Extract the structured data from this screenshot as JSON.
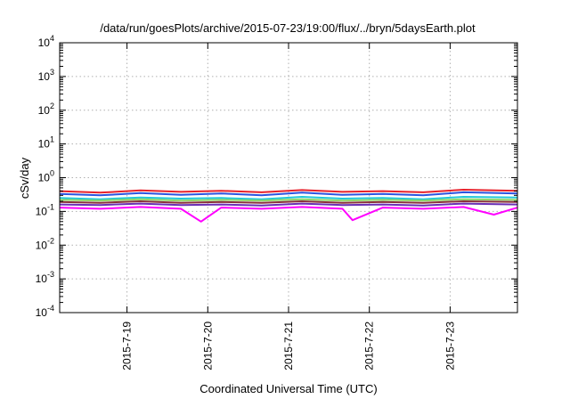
{
  "chart_data": {
    "type": "line",
    "title": "/data/run/goesPlots/archive/2015-07-23/19:00/flux/../bryn/5daysEarth.plot",
    "xlabel": "Coordinated Universal Time (UTC)",
    "ylabel": "cSv/day",
    "yscale": "log",
    "ylim": [
      0.0001,
      10000
    ],
    "xlim": [
      "2015-07-18 04:00",
      "2015-07-23 20:00"
    ],
    "y_ticks": [
      {
        "base": "10",
        "exp": "4",
        "value": 10000
      },
      {
        "base": "10",
        "exp": "3",
        "value": 1000
      },
      {
        "base": "10",
        "exp": "2",
        "value": 100
      },
      {
        "base": "10",
        "exp": "1",
        "value": 10
      },
      {
        "base": "10",
        "exp": "0",
        "value": 1
      },
      {
        "base": "10",
        "exp": "-1",
        "value": 0.1
      },
      {
        "base": "10",
        "exp": "-2",
        "value": 0.01
      },
      {
        "base": "10",
        "exp": "-3",
        "value": 0.001
      },
      {
        "base": "10",
        "exp": "-4",
        "value": 0.0001
      }
    ],
    "x_ticks": [
      {
        "label": "2015-7-19",
        "date": "2015-07-19 00:00"
      },
      {
        "label": "2015-7-20",
        "date": "2015-07-20 00:00"
      },
      {
        "label": "2015-7-21",
        "date": "2015-07-21 00:00"
      },
      {
        "label": "2015-7-22",
        "date": "2015-07-22 00:00"
      },
      {
        "label": "2015-7-23",
        "date": "2015-07-23 00:00"
      }
    ],
    "grid": true,
    "series": [
      {
        "color": "#e8202a",
        "x": [
          "2015-07-18 04:00",
          "2015-07-18 16:00",
          "2015-07-19 04:00",
          "2015-07-19 16:00",
          "2015-07-20 04:00",
          "2015-07-20 16:00",
          "2015-07-21 04:00",
          "2015-07-21 16:00",
          "2015-07-22 04:00",
          "2015-07-22 16:00",
          "2015-07-23 04:00",
          "2015-07-23 20:00"
        ],
        "values": [
          0.4,
          0.36,
          0.42,
          0.38,
          0.41,
          0.37,
          0.43,
          0.38,
          0.4,
          0.37,
          0.44,
          0.41
        ]
      },
      {
        "color": "#2b55e0",
        "x": [
          "2015-07-18 04:00",
          "2015-07-18 16:00",
          "2015-07-19 04:00",
          "2015-07-19 16:00",
          "2015-07-20 04:00",
          "2015-07-20 16:00",
          "2015-07-21 04:00",
          "2015-07-21 16:00",
          "2015-07-22 04:00",
          "2015-07-22 16:00",
          "2015-07-23 04:00",
          "2015-07-23 20:00"
        ],
        "values": [
          0.33,
          0.3,
          0.35,
          0.31,
          0.34,
          0.3,
          0.36,
          0.31,
          0.33,
          0.3,
          0.37,
          0.34
        ]
      },
      {
        "color": "#22c8d8",
        "x": [
          "2015-07-18 04:00",
          "2015-07-18 16:00",
          "2015-07-19 04:00",
          "2015-07-19 16:00",
          "2015-07-20 04:00",
          "2015-07-20 16:00",
          "2015-07-21 04:00",
          "2015-07-21 16:00",
          "2015-07-22 04:00",
          "2015-07-22 16:00",
          "2015-07-23 04:00",
          "2015-07-23 20:00"
        ],
        "values": [
          0.25,
          0.23,
          0.26,
          0.24,
          0.25,
          0.23,
          0.27,
          0.24,
          0.25,
          0.23,
          0.27,
          0.26
        ]
      },
      {
        "color": "#8fd66a",
        "x": [
          "2015-07-18 04:00",
          "2015-07-18 16:00",
          "2015-07-19 04:00",
          "2015-07-19 16:00",
          "2015-07-20 04:00",
          "2015-07-20 16:00",
          "2015-07-21 04:00",
          "2015-07-21 16:00",
          "2015-07-22 04:00",
          "2015-07-22 16:00",
          "2015-07-23 04:00",
          "2015-07-23 20:00"
        ],
        "values": [
          0.22,
          0.21,
          0.23,
          0.21,
          0.22,
          0.21,
          0.23,
          0.21,
          0.22,
          0.21,
          0.23,
          0.22
        ]
      },
      {
        "color": "#8a2f3a",
        "x": [
          "2015-07-18 04:00",
          "2015-07-18 16:00",
          "2015-07-19 04:00",
          "2015-07-19 16:00",
          "2015-07-20 04:00",
          "2015-07-20 16:00",
          "2015-07-21 04:00",
          "2015-07-21 16:00",
          "2015-07-22 04:00",
          "2015-07-22 16:00",
          "2015-07-23 04:00",
          "2015-07-23 20:00"
        ],
        "values": [
          0.19,
          0.18,
          0.2,
          0.18,
          0.19,
          0.18,
          0.2,
          0.18,
          0.19,
          0.18,
          0.2,
          0.19
        ]
      },
      {
        "color": "#6a2fb5",
        "x": [
          "2015-07-18 04:00",
          "2015-07-18 16:00",
          "2015-07-19 04:00",
          "2015-07-19 16:00",
          "2015-07-20 04:00",
          "2015-07-20 16:00",
          "2015-07-21 04:00",
          "2015-07-21 16:00",
          "2015-07-22 04:00",
          "2015-07-22 16:00",
          "2015-07-23 04:00",
          "2015-07-23 20:00"
        ],
        "values": [
          0.16,
          0.155,
          0.17,
          0.155,
          0.16,
          0.15,
          0.17,
          0.155,
          0.16,
          0.15,
          0.17,
          0.16
        ]
      },
      {
        "color": "#ff00ff",
        "x": [
          "2015-07-18 04:00",
          "2015-07-18 16:00",
          "2015-07-19 04:00",
          "2015-07-19 16:00",
          "2015-07-19 22:00",
          "2015-07-20 04:00",
          "2015-07-20 16:00",
          "2015-07-21 04:00",
          "2015-07-21 16:00",
          "2015-07-21 19:00",
          "2015-07-22 04:00",
          "2015-07-22 16:00",
          "2015-07-23 04:00",
          "2015-07-23 13:00",
          "2015-07-23 20:00"
        ],
        "values": [
          0.13,
          0.12,
          0.135,
          0.12,
          0.05,
          0.13,
          0.12,
          0.135,
          0.12,
          0.055,
          0.13,
          0.12,
          0.135,
          0.08,
          0.13
        ]
      }
    ]
  }
}
